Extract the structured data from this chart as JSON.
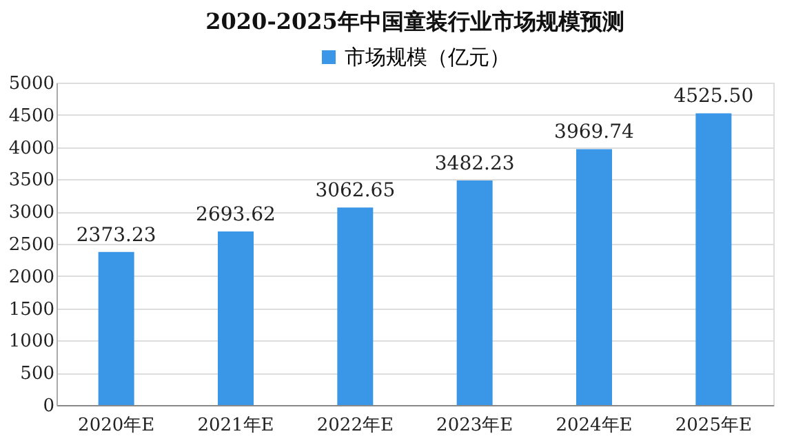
{
  "chart_data": {
    "type": "bar",
    "title": "2020-2025年中国童装行业市场规模预测",
    "categories": [
      "2020年E",
      "2021年E",
      "2022年E",
      "2023年E",
      "2024年E",
      "2025年E"
    ],
    "series": [
      {
        "name": "市场规模（亿元）",
        "color": "#3a97e8",
        "values": [
          2373.23,
          2693.62,
          3062.65,
          3482.23,
          3969.74,
          4525.5
        ]
      }
    ],
    "value_labels": [
      "2373.23",
      "2693.62",
      "3062.65",
      "3482.23",
      "3969.74",
      "4525.50"
    ],
    "ylim": [
      0,
      5000
    ],
    "yticks": [
      0,
      500,
      1000,
      1500,
      2000,
      2500,
      3000,
      3500,
      4000,
      4500,
      5000
    ],
    "grid": "y",
    "legend": "top"
  }
}
